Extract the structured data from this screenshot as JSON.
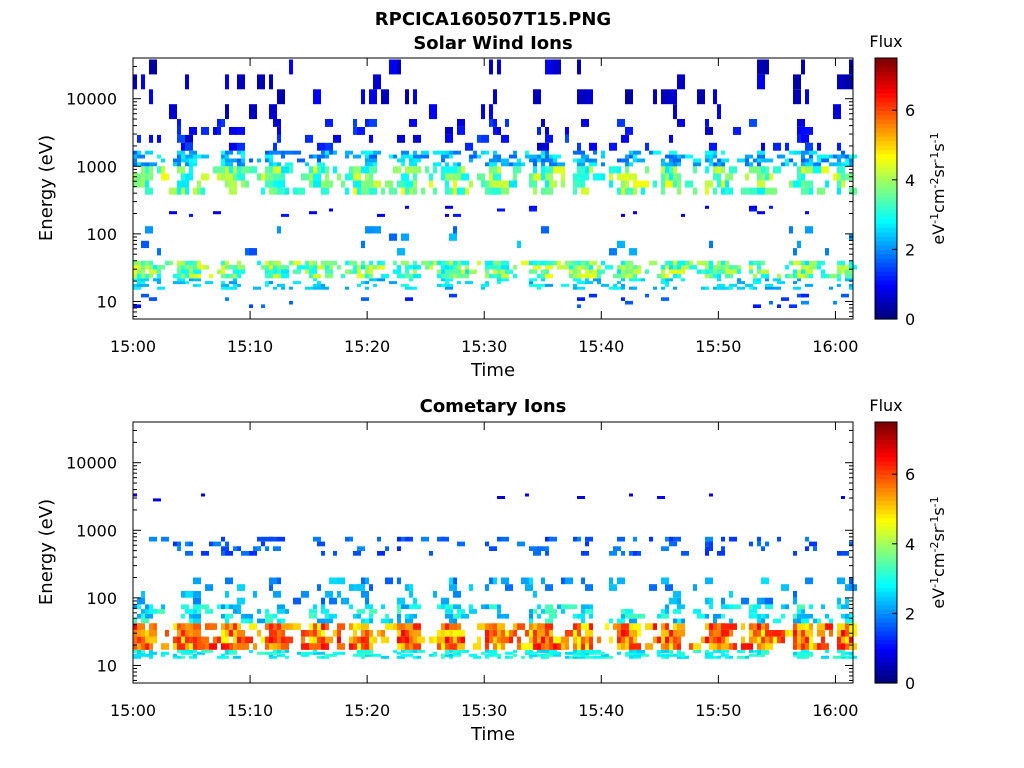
{
  "figure_title": "RPCICA160507T15.PNG",
  "chart_data": [
    {
      "type": "heatmap",
      "title": "Solar Wind Ions",
      "xlabel": "Time",
      "ylabel": "Energy (eV)",
      "x_ticks": [
        "15:00",
        "15:10",
        "15:20",
        "15:30",
        "15:40",
        "15:50",
        "16:00"
      ],
      "y_ticks": [
        "10",
        "100",
        "1000",
        "10000"
      ],
      "y_scale": "log",
      "ylim": [
        5.5,
        40000
      ],
      "xlim_minutes": [
        0,
        61.5
      ],
      "colorbar": {
        "label": "Flux",
        "units": "eV-1cm-2sr-1s-1",
        "ticks": [
          "0",
          "2",
          "4",
          "6"
        ],
        "range": [
          0,
          7.5
        ],
        "colormap": "jet"
      },
      "bands": [
        {
          "energy": [
            8,
            13
          ],
          "density": 0.06,
          "flux": [
            1.0,
            2.0
          ]
        },
        {
          "energy": [
            15,
            22
          ],
          "density": 0.32,
          "flux": [
            2.0,
            3.0
          ]
        },
        {
          "energy": [
            22,
            40
          ],
          "density": 0.78,
          "flux": [
            2.6,
            4.6
          ]
        },
        {
          "energy": [
            48,
            130
          ],
          "density": 0.06,
          "flux": [
            1.5,
            2.5
          ]
        },
        {
          "energy": [
            180,
            260
          ],
          "density": 0.07,
          "flux": [
            0.6,
            1.2
          ]
        },
        {
          "energy": [
            380,
            1000
          ],
          "density": 0.62,
          "flux": [
            2.6,
            4.6
          ]
        },
        {
          "energy": [
            1000,
            1700
          ],
          "density": 0.55,
          "flux": [
            1.6,
            3.0
          ]
        },
        {
          "energy": [
            1700,
            5000
          ],
          "density": 0.18,
          "flux": [
            0.5,
            1.5
          ]
        },
        {
          "energy": [
            5000,
            38000
          ],
          "density": 0.1,
          "flux": [
            0.2,
            0.9
          ]
        }
      ]
    },
    {
      "type": "heatmap",
      "title": "Cometary Ions",
      "xlabel": "Time",
      "ylabel": "Energy (eV)",
      "x_ticks": [
        "15:00",
        "15:10",
        "15:20",
        "15:30",
        "15:40",
        "15:50",
        "16:00"
      ],
      "y_ticks": [
        "10",
        "100",
        "1000",
        "10000"
      ],
      "y_scale": "log",
      "ylim": [
        5.5,
        40000
      ],
      "xlim_minutes": [
        0,
        61.5
      ],
      "colorbar": {
        "label": "Flux",
        "units": "eV-1cm-2sr-1s-1",
        "ticks": [
          "0",
          "2",
          "4",
          "6"
        ],
        "range": [
          0,
          7.5
        ],
        "colormap": "jet"
      },
      "bands": [
        {
          "energy": [
            13,
            17
          ],
          "density": 0.55,
          "flux": [
            2.4,
            3.3
          ]
        },
        {
          "energy": [
            17,
            42
          ],
          "density": 0.95,
          "flux": [
            4.6,
            6.6
          ]
        },
        {
          "energy": [
            42,
            80
          ],
          "density": 0.45,
          "flux": [
            2.0,
            3.4
          ]
        },
        {
          "energy": [
            80,
            200
          ],
          "density": 0.18,
          "flux": [
            1.6,
            2.6
          ]
        },
        {
          "energy": [
            420,
            800
          ],
          "density": 0.22,
          "flux": [
            1.2,
            2.0
          ]
        },
        {
          "energy": [
            2500,
            3500
          ],
          "density": 0.02,
          "flux": [
            0.5,
            0.9
          ]
        }
      ]
    }
  ]
}
